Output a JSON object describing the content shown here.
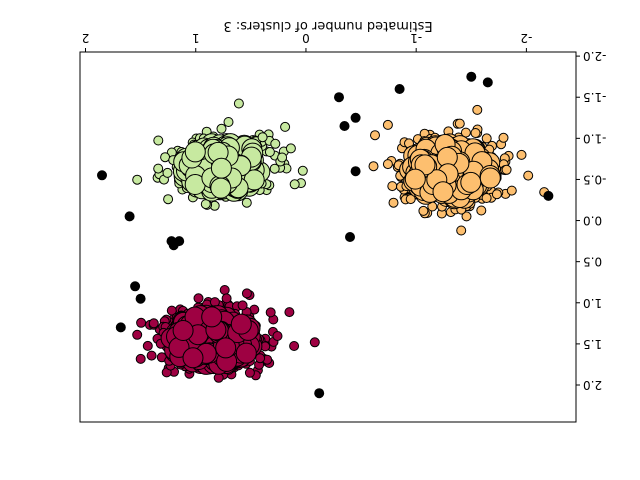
{
  "chart_data": {
    "type": "scatter",
    "title": "",
    "xlabel": "Estimated number of clusters: 3",
    "ylabel": "",
    "orientation": "rotated 180 degrees (upside-down)",
    "xlim": [
      -2.45,
      2.05
    ],
    "ylim": [
      -2.05,
      2.45
    ],
    "grid": false,
    "legend": "none",
    "x_ticks": [
      "-2",
      "-1",
      "0",
      "1",
      "2"
    ],
    "y_ticks": [
      "-2.0",
      "-1.5",
      "-1.0",
      "-0.5",
      "0.0",
      "0.5",
      "1.0",
      "1.5",
      "2.0"
    ],
    "clusters": [
      {
        "label": "orange cluster",
        "color": "#fdbf6f",
        "center": [
          -1.3,
          -0.6
        ],
        "spread": [
          0.45,
          0.4
        ],
        "count": 420
      },
      {
        "label": "green cluster",
        "color": "#c7e9a0",
        "center": [
          0.75,
          -0.65
        ],
        "spread": [
          0.45,
          0.35
        ],
        "count": 340
      },
      {
        "label": "crimson cluster",
        "color": "#9e0142",
        "center": [
          0.85,
          1.45
        ],
        "spread": [
          0.45,
          0.35
        ],
        "count": 420
      }
    ],
    "core_marker_size": "large",
    "border_marker_size": "small",
    "noise": {
      "color": "#000000",
      "points": [
        [
          -1.5,
          -1.75
        ],
        [
          -1.65,
          -1.68
        ],
        [
          -0.85,
          -1.6
        ],
        [
          -0.3,
          -1.5
        ],
        [
          -0.45,
          -1.25
        ],
        [
          -0.35,
          -1.15
        ],
        [
          -0.45,
          -0.6
        ],
        [
          -2.2,
          -0.3
        ],
        [
          1.85,
          -0.55
        ],
        [
          1.6,
          -0.05
        ],
        [
          1.55,
          0.8
        ],
        [
          1.5,
          0.95
        ],
        [
          1.68,
          1.3
        ],
        [
          -0.4,
          0.2
        ],
        [
          1.2,
          0.3
        ],
        [
          1.15,
          0.25
        ],
        [
          1.22,
          0.25
        ],
        [
          -0.12,
          2.1
        ]
      ]
    }
  }
}
